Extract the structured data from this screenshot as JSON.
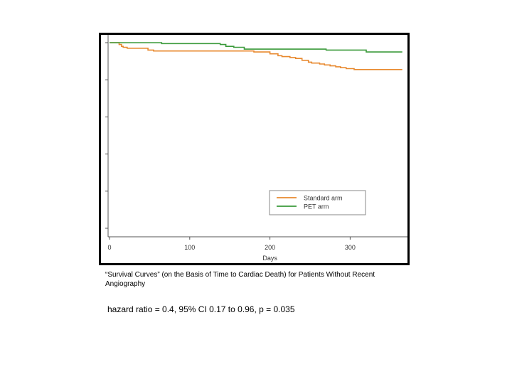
{
  "chart_data": {
    "type": "line",
    "xlabel": "Days",
    "ylabel": "",
    "xlim": [
      0,
      375
    ],
    "ylim": [
      0,
      1.0
    ],
    "x_ticks": [
      0,
      100,
      200,
      300
    ],
    "x_tick_labels": [
      "0",
      "100",
      "200",
      "300"
    ],
    "y_ticks": [
      0.0,
      0.2,
      0.4,
      0.6,
      0.8,
      1.0
    ],
    "y_tick_labels": [
      "",
      "",
      "",
      "",
      "",
      ""
    ],
    "grid": false,
    "legend_position": "bottom-right",
    "series": [
      {
        "name": "Standard arm",
        "color": "#e8892f",
        "step": true,
        "x": [
          0,
          12,
          15,
          17,
          22,
          48,
          55,
          180,
          200,
          210,
          215,
          225,
          232,
          240,
          248,
          252,
          262,
          268,
          275,
          282,
          288,
          295,
          305,
          365
        ],
        "y": [
          1.0,
          0.99,
          0.98,
          0.975,
          0.97,
          0.96,
          0.955,
          0.95,
          0.94,
          0.93,
          0.925,
          0.92,
          0.915,
          0.905,
          0.895,
          0.89,
          0.885,
          0.88,
          0.875,
          0.87,
          0.865,
          0.86,
          0.855,
          0.855
        ]
      },
      {
        "name": "PET arm",
        "color": "#3a9a3a",
        "step": true,
        "x": [
          0,
          65,
          138,
          145,
          155,
          168,
          270,
          320,
          365
        ],
        "y": [
          1.0,
          0.995,
          0.99,
          0.98,
          0.975,
          0.965,
          0.96,
          0.95,
          0.95
        ]
      }
    ]
  },
  "caption": "“Survival Curves” (on the Basis of Time to Cardiac Death) for Patients Without Recent Angiography",
  "stats": "hazard ratio = 0.4, 95% CI 0.17 to 0.96, p = 0.035"
}
